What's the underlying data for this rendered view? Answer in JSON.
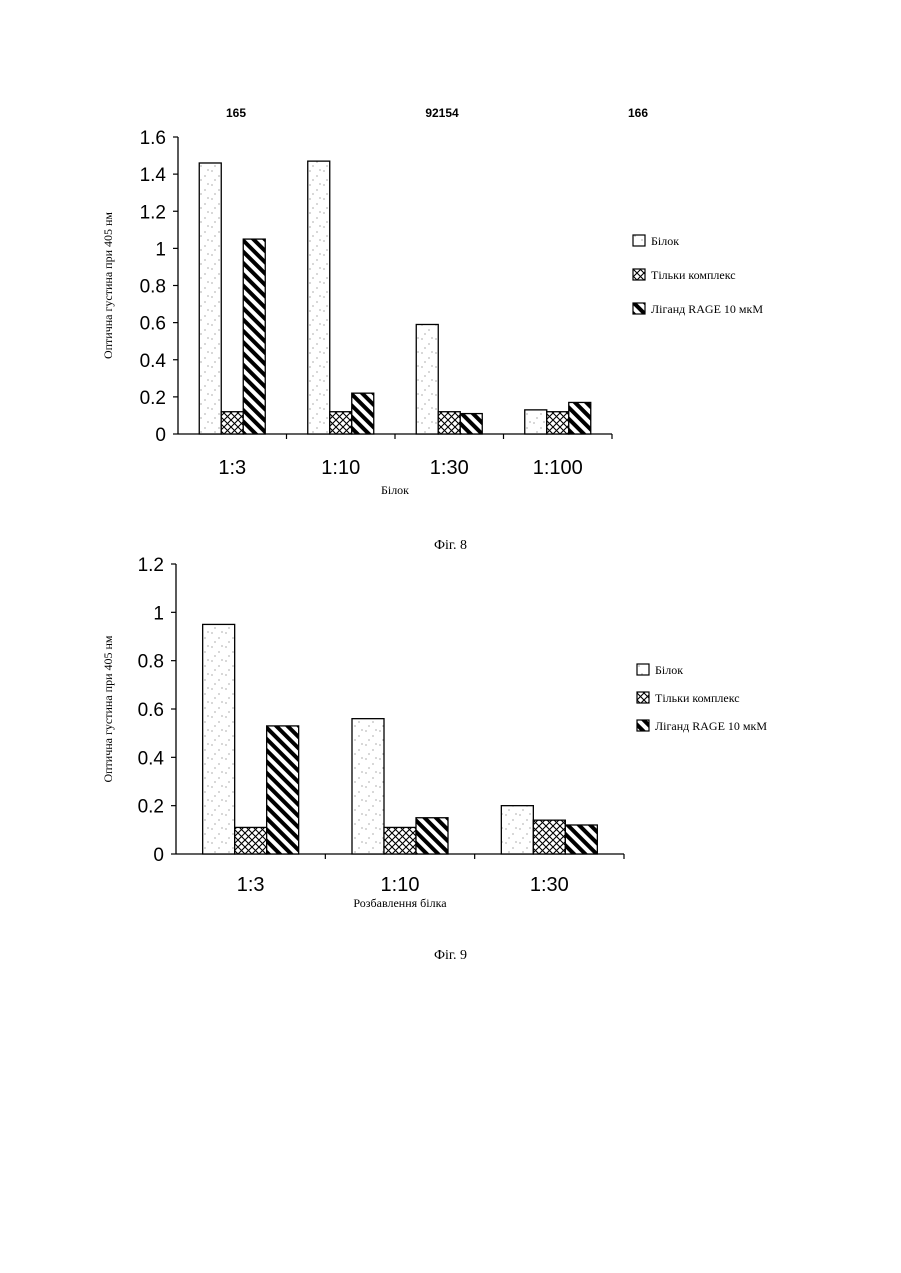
{
  "header": {
    "page_numbers": [
      "165",
      "92154",
      "166"
    ]
  },
  "figures": [
    {
      "caption": "Фіг. 8",
      "legend_labels": [
        "Білок",
        "Тільки комплекс",
        "Лiганд RAGE 10 мкМ"
      ]
    },
    {
      "caption": "Фіг. 9",
      "legend_labels": [
        "Білок",
        "Тільки комплекс",
        "Лiганд RAGE 10 мкМ"
      ]
    }
  ],
  "chart_data": [
    {
      "type": "bar",
      "categories": [
        "1:3",
        "1:10",
        "1:30",
        "1:100"
      ],
      "series": [
        {
          "name": "Білок",
          "values": [
            1.46,
            1.47,
            0.59,
            0.13
          ],
          "pattern": "stipple"
        },
        {
          "name": "Тільки комплекс",
          "values": [
            0.12,
            0.12,
            0.12,
            0.12
          ],
          "pattern": "crosshatch"
        },
        {
          "name": "Лiганд RAGE 10 мкМ",
          "values": [
            1.05,
            0.22,
            0.11,
            0.17
          ],
          "pattern": "diagonal"
        }
      ],
      "ylabel": "Оптична густина при 405 нм",
      "xlabel": "Білок",
      "ylim": [
        0,
        1.6
      ],
      "yticks": [
        "0",
        "0.2",
        "0.4",
        "0.6",
        "0.8",
        "1",
        "1.2",
        "1.4",
        "1.6"
      ],
      "legend_position": "right",
      "grid": false
    },
    {
      "type": "bar",
      "categories": [
        "1:3",
        "1:10",
        "1:30"
      ],
      "series": [
        {
          "name": "Білок",
          "values": [
            0.95,
            0.56,
            0.2
          ],
          "pattern": "stipple"
        },
        {
          "name": "Тільки комплекс",
          "values": [
            0.11,
            0.11,
            0.14
          ],
          "pattern": "crosshatch"
        },
        {
          "name": "Лiганд RAGE 10 мкМ",
          "values": [
            0.53,
            0.15,
            0.12
          ],
          "pattern": "diagonal"
        }
      ],
      "ylabel": "Оптична густина при 405 нм",
      "xlabel": "Розбавлення білка",
      "ylim": [
        0,
        1.2
      ],
      "yticks": [
        "0",
        "0.2",
        "0.4",
        "0.6",
        "0.8",
        "1",
        "1.2"
      ],
      "legend_position": "right",
      "grid": false
    }
  ]
}
